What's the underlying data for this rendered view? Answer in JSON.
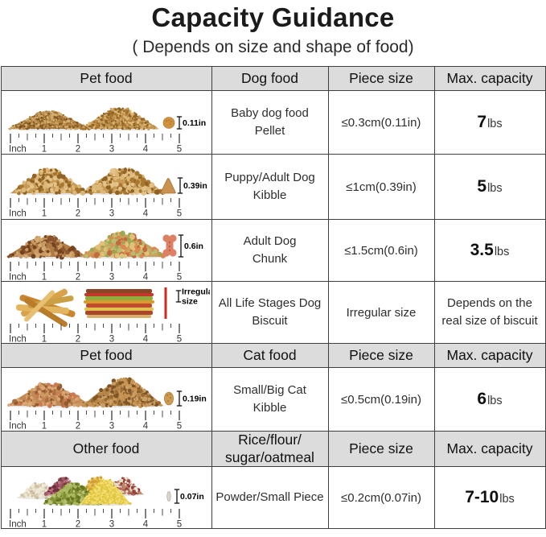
{
  "title": "Capacity Guidance",
  "subtitle": "( Depends on size and shape of food)",
  "colors": {
    "header_bg": "#dcdcdc",
    "border": "#3f3f3f",
    "biscuit_stick_red": "#cc2a1e"
  },
  "ruler": {
    "unit_label": "Inch",
    "marks": [
      "1",
      "2",
      "3",
      "4",
      "5"
    ]
  },
  "sections": [
    {
      "header": {
        "col1": "Pet food",
        "col2": [
          "Dog food"
        ],
        "col3": "Piece size",
        "col4": "Max. capacity"
      },
      "rows": [
        {
          "image": "baby-dog-pellet",
          "measure": [
            "0.11in"
          ],
          "food": [
            "Baby dog food",
            "Pellet"
          ],
          "piece_size": "≤0.3cm(0.11in)",
          "capacity": {
            "value": "7",
            "unit": "lbs"
          }
        },
        {
          "image": "puppy-adult-kibble",
          "measure": [
            "0.39in"
          ],
          "food": [
            "Puppy/Adult Dog",
            "Kibble"
          ],
          "piece_size": "≤1cm(0.39in)",
          "capacity": {
            "value": "5",
            "unit": "lbs"
          }
        },
        {
          "image": "adult-dog-chunk",
          "measure": [
            "0.6in"
          ],
          "food": [
            "Adult Dog",
            "Chunk"
          ],
          "piece_size": "≤1.5cm(0.6in)",
          "capacity": {
            "value": "3.5",
            "unit": "lbs"
          }
        },
        {
          "image": "dog-biscuit",
          "measure": [
            "Irregular",
            "size"
          ],
          "food": [
            "All Life Stages Dog",
            "Biscuit"
          ],
          "piece_size": "Irregular size",
          "capacity": {
            "text": [
              "Depends on the",
              "real size of biscuit"
            ]
          }
        }
      ]
    },
    {
      "header": {
        "col1": "Pet food",
        "col2": [
          "Cat food"
        ],
        "col3": "Piece size",
        "col4": "Max. capacity"
      },
      "rows": [
        {
          "image": "cat-kibble",
          "measure": [
            "0.19in"
          ],
          "food": [
            "Small/Big Cat",
            "Kibble"
          ],
          "piece_size": "≤0.5cm(0.19in)",
          "capacity": {
            "value": "6",
            "unit": "lbs"
          }
        }
      ]
    },
    {
      "header": {
        "col1": "Other food",
        "col2": [
          "Rice/flour/",
          "sugar/oatmeal"
        ],
        "col3": "Piece size",
        "col4": "Max. capacity"
      },
      "rows": [
        {
          "image": "powder-grains",
          "measure": [
            "0.07in"
          ],
          "food": [
            "Powder/Small Piece"
          ],
          "piece_size": "≤0.2cm(0.07in)",
          "capacity": {
            "value": "7-10",
            "unit": "lbs"
          }
        }
      ]
    }
  ]
}
